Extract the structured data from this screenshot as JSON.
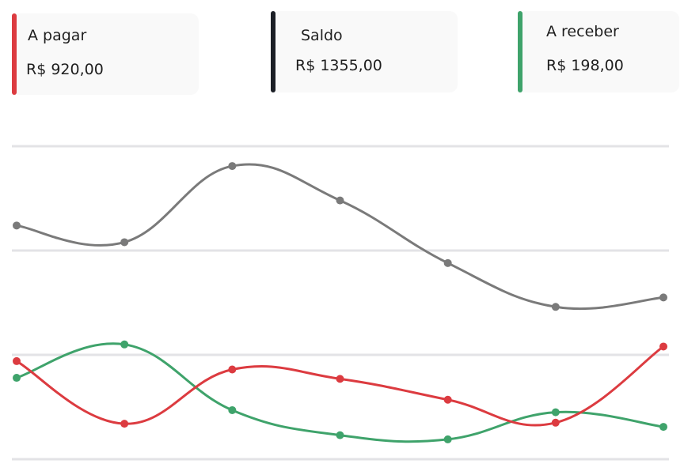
{
  "summary": {
    "cards": [
      {
        "label": "A pagar",
        "value": "R$ 920,00",
        "color": "#dc3b40"
      },
      {
        "label": "Saldo",
        "value": "R$ 1355,00",
        "color": "#1b1f26"
      },
      {
        "label": "A receber",
        "value": "R$ 198,00",
        "color": "#3fa36b"
      }
    ]
  },
  "chart_data": {
    "type": "line",
    "title": "",
    "xlabel": "",
    "ylabel": "",
    "grid": true,
    "ylim": [
      0,
      300
    ],
    "x": [
      1,
      2,
      3,
      4,
      5,
      6,
      7
    ],
    "series": [
      {
        "color": "#7a7a7a",
        "values": [
          224,
          208,
          281,
          248,
          188,
          146,
          155
        ]
      },
      {
        "color": "#3fa36b",
        "values": [
          78,
          110,
          47,
          23,
          19,
          45,
          31
        ]
      },
      {
        "color": "#dc3b40",
        "values": [
          94,
          34,
          86,
          77,
          57,
          35,
          108
        ]
      }
    ]
  }
}
